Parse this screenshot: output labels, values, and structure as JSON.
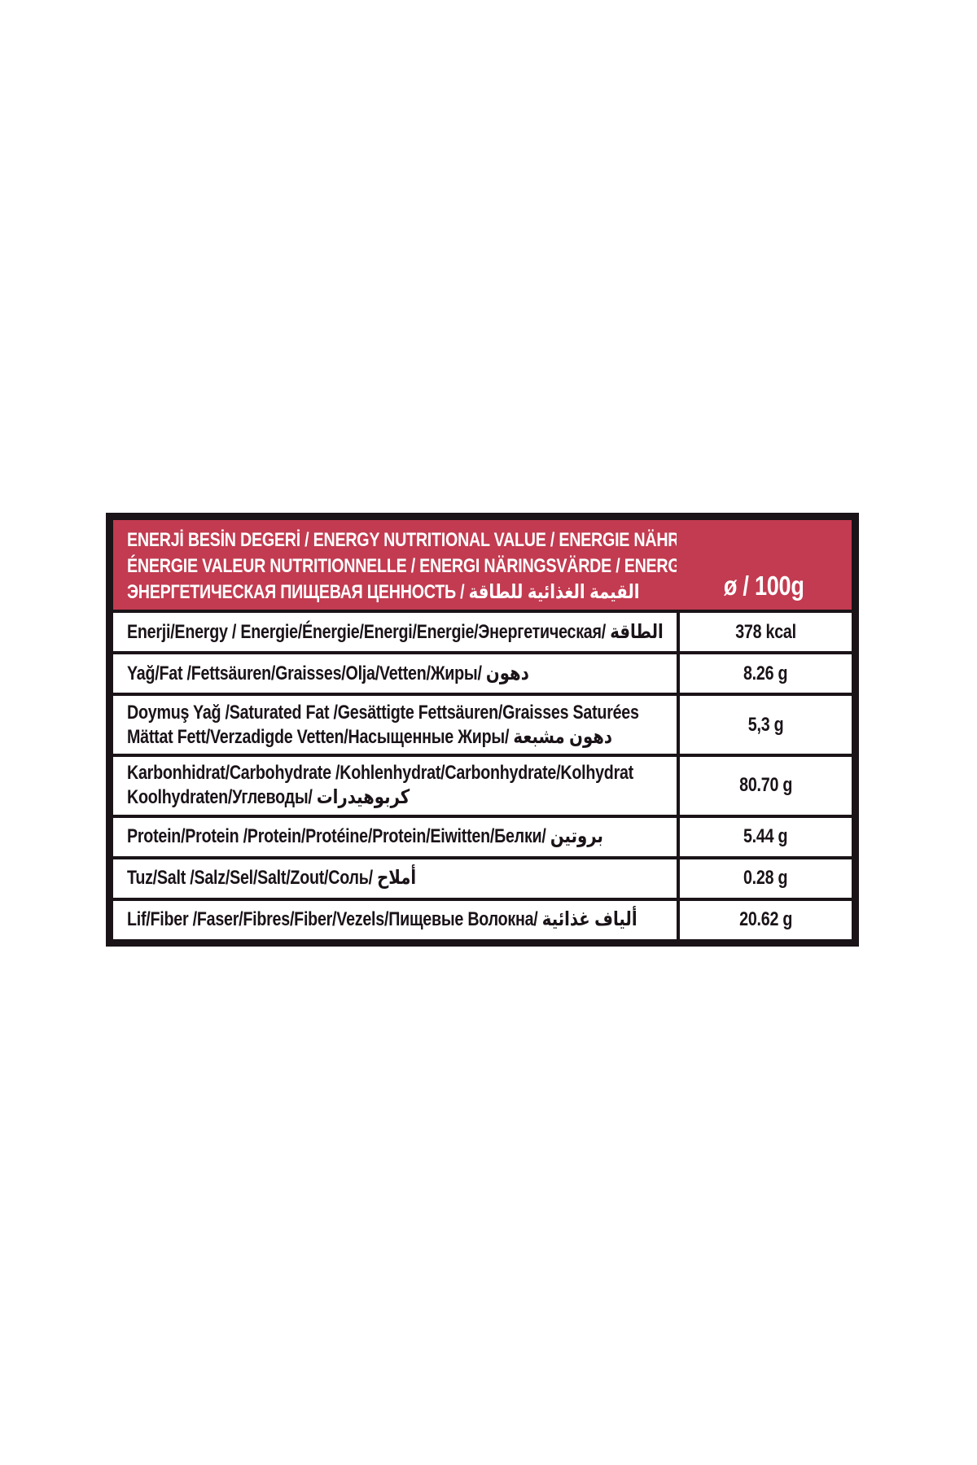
{
  "colors": {
    "header_background": "#c23b50",
    "header_text": "#ffffff",
    "border": "#1a1318",
    "row_background": "#ffffff",
    "row_text": "#1a1318"
  },
  "table": {
    "header": {
      "lines": [
        "ENERJİ BESİN DEGERİ / ENERGY NUTRITIONAL VALUE / ENERGIE NÄHRWERT",
        "ÉNERGIE VALEUR NUTRITIONNELLE / ENERGI NÄRINGSVÄRDE / ENERGIEWAARDE",
        "ЭНЕРГЕТИЧЕСКАЯ ПИЩЕВАЯ ЦЕННОСТЬ / القيمة الغذائية للطاقة"
      ],
      "per_label": "ø / 100g"
    },
    "rows": [
      {
        "label_lines": [
          "Enerji/Energy / Energie/Énergie/Energi/Energie/Энергетическая/ الطاقة"
        ],
        "value": "378 kcal"
      },
      {
        "label_lines": [
          "Yağ/Fat /Fettsäuren/Graisses/Olja/Vetten/Жиры/ دهون"
        ],
        "value": "8.26 g"
      },
      {
        "label_lines": [
          "Doymuş Yağ /Saturated Fat /Gesättigte Fettsäuren/Graisses Saturées",
          "Mättat Fett/Verzadigde Vetten/Насыщенные Жиры/ دهون مشبعة"
        ],
        "value": "5,3 g"
      },
      {
        "label_lines": [
          "Karbonhidrat/Carbohydrate /Kohlenhydrat/Carbonhydrate/Kolhydrat",
          "Koolhydraten/Углеводы/ كربوهيدرات"
        ],
        "value": "80.70 g"
      },
      {
        "label_lines": [
          "Protein/Protein /Protein/Protéine/Protein/Eiwitten/Белки/ بروتين"
        ],
        "value": "5.44 g"
      },
      {
        "label_lines": [
          "Tuz/Salt /Salz/Sel/Salt/Zout/Соль/ أملاح"
        ],
        "value": "0.28 g"
      },
      {
        "label_lines": [
          "Lif/Fiber /Faser/Fibres/Fiber/Vezels/Пищевые Волокна/ ألياف غذائية"
        ],
        "value": "20.62 g"
      }
    ]
  }
}
